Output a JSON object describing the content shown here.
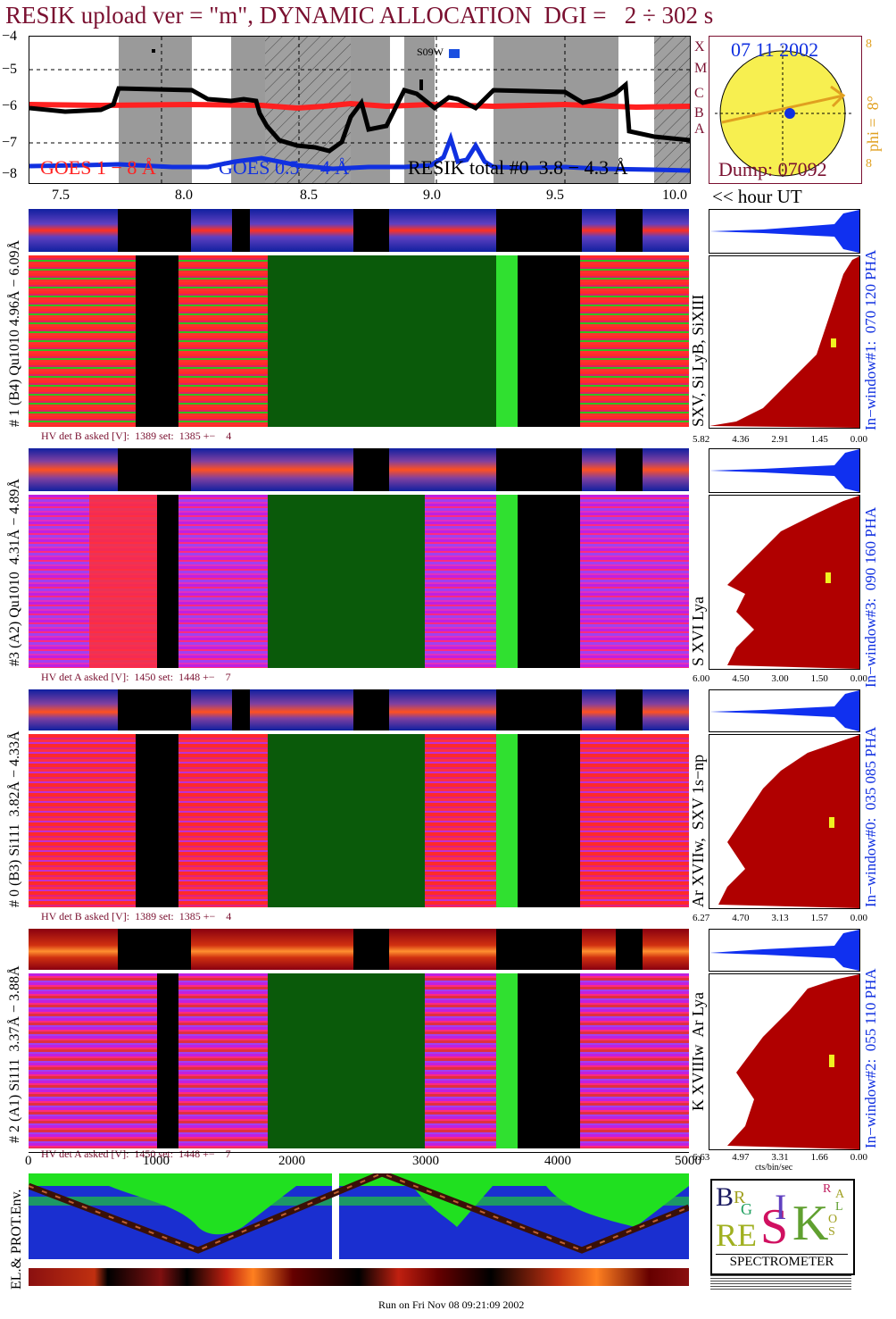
{
  "title": "RESIK upload ver = \"m\", DYNAMIC ALLOCATION  DGI =   2 ÷ 302 s",
  "colors": {
    "title": "#7a1030",
    "goes_1_8": "#ff2020",
    "goes_05_4": "#1030e0",
    "resik_total": "#000000",
    "histogram": "#b00000",
    "pha": "#1030f0",
    "sun": "#f7ef50",
    "orbit_arrow": "#e0a020",
    "ground_ocean": "#1a2fd0",
    "ground_land": "#20e020"
  },
  "lightcurve": {
    "y_ticks": [
      "−4",
      "−5",
      "−6",
      "−7",
      "−8"
    ],
    "class_labels": [
      "X",
      "M",
      "C",
      "B",
      "A"
    ],
    "annotation": "S09W",
    "legend": {
      "goes_1_8": "GOES 1 − 8 Å",
      "goes_05_4": "GOES 0.5 − 4 Å",
      "resik": "RESIK total #0  3.8 − 4.3 Å"
    }
  },
  "sun_panel": {
    "date": "07 11 2002",
    "dump": "Dump: 07092",
    "phi": "phi =  8°",
    "marks": [
      "8",
      "8"
    ]
  },
  "time_axis": {
    "ticks": [
      "7.5",
      "8.0",
      "8.5",
      "9.0",
      "9.5",
      "10.0"
    ],
    "label": "<< hour UT"
  },
  "channels": [
    {
      "left_label": "# 1 (B4) Qu1010 4.96Å − 6.09Å",
      "lines": "SXV, Si LyB, SiXIII",
      "window": "In−window#1:  070 120 PHA",
      "hv": "HV det B asked [V]:  1389 set:  1385 +−    4",
      "hist_ticks": [
        "5.82",
        "4.36",
        "2.91",
        "1.45",
        "0.00"
      ]
    },
    {
      "left_label": "#3 (A2) Qu1010  4.31Å − 4.89Å",
      "lines": "S XVI Lya",
      "window": "In−window#3:  090 160 PHA",
      "hv": "HV det A asked [V]:  1450 set:  1448 +−    7",
      "hist_ticks": [
        "6.00",
        "4.50",
        "3.00",
        "1.50",
        "0.00"
      ]
    },
    {
      "left_label": "# 0 (B3) Si111  3.82Å − 4.33Å",
      "lines": "Ar XVIIw,  SXV 1s−np",
      "window": "In−window#0:  035 085 PHA",
      "hv": "HV det B asked [V]:  1389 set:  1385 +−    4",
      "hist_ticks": [
        "6.27",
        "4.70",
        "3.13",
        "1.57",
        "0.00"
      ]
    },
    {
      "left_label": "# 2 (A1) Si111  3.37Å − 3.88Å",
      "lines": "K XVIIIw  Ar Lya",
      "window": "In−window#2:  055 110 PHA",
      "hv": "HV det A asked [V]:  1450 set:  1448 +−    7",
      "hist_ticks": [
        "6.63",
        "4.97",
        "3.31",
        "1.66",
        "0.00"
      ]
    }
  ],
  "hist_unit": "cts/bin/sec",
  "bottom_axis": {
    "ticks": [
      "0",
      "1000",
      "2000",
      "3000",
      "4000",
      "5000"
    ]
  },
  "ground_track": {
    "label": "EL.& PROT.Env."
  },
  "logo": {
    "letters": [
      "B",
      "R",
      "G",
      "RE",
      "S",
      "I",
      "K",
      "S",
      "O",
      "L",
      "A",
      "R"
    ],
    "caption": "SPECTROMETER"
  },
  "footer": "Run on Fri Nov 08 09:21:09 2002"
}
